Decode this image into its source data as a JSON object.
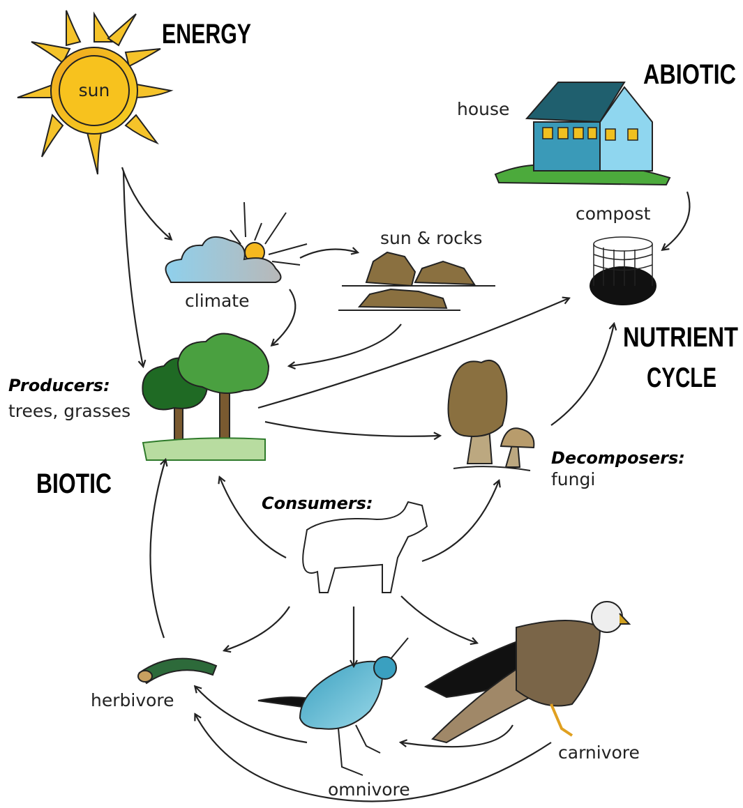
{
  "headings": {
    "energy": "ENERGY",
    "abiotic": "ABIOTIC",
    "nutrient_cycle": [
      "NUTRIENT",
      "CYCLE"
    ],
    "biotic": "BIOTIC"
  },
  "nodes": {
    "sun": {
      "label": "sun"
    },
    "house": {
      "label": "house"
    },
    "compost": {
      "label": "compost"
    },
    "sun_rocks": {
      "label": "sun & rocks"
    },
    "climate": {
      "label": "climate"
    },
    "producers": {
      "label": "Producers:",
      "description": "trees, grasses"
    },
    "decomposers": {
      "label": "Decomposers:",
      "description": "fungi"
    },
    "consumers": {
      "label": "Consumers:"
    },
    "herbivore": {
      "label": "herbivore"
    },
    "omnivore": {
      "label": "omnivore"
    },
    "carnivore": {
      "label": "carnivore"
    }
  }
}
